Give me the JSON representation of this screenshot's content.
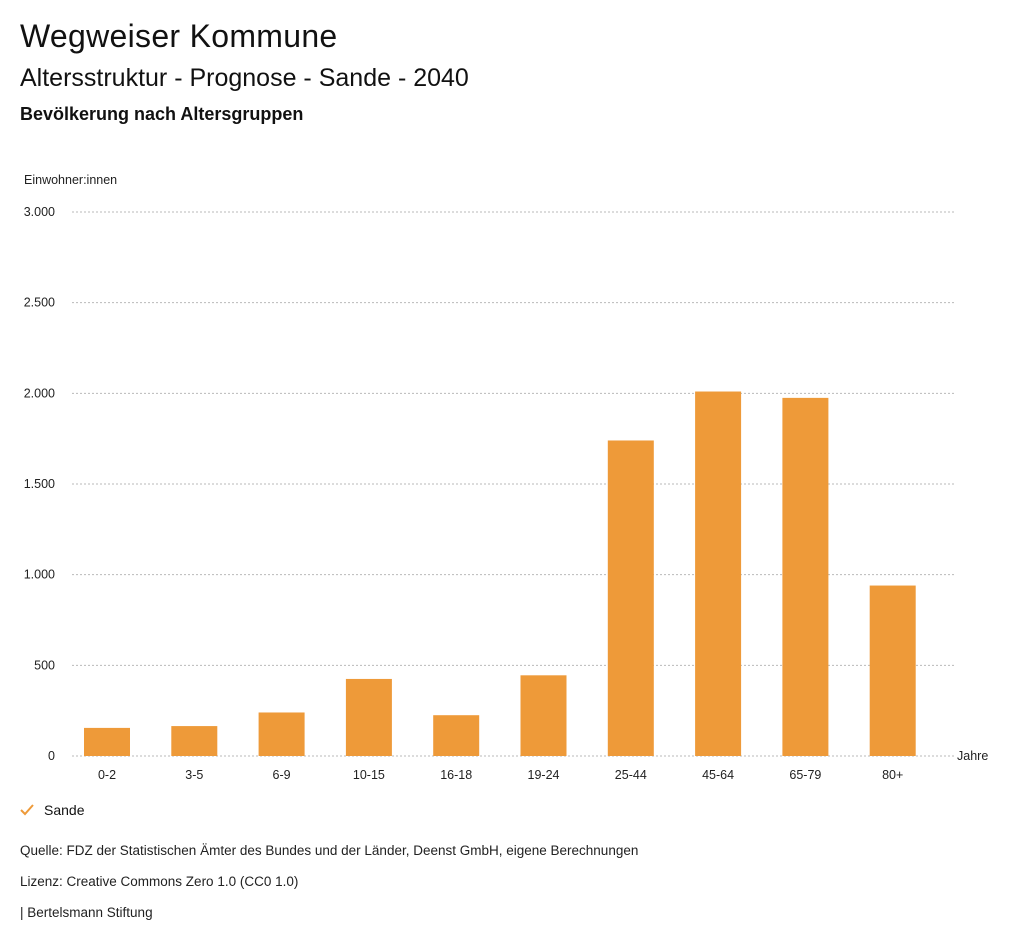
{
  "header": {
    "title": "Wegweiser Kommune",
    "subtitle": "Altersstruktur - Prognose - Sande - 2040",
    "subsubtitle": "Bevölkerung nach Altersgruppen"
  },
  "legend": {
    "label": "Sande",
    "color": "#EE9A39",
    "icon": "check-icon"
  },
  "footer": {
    "source": "Quelle: FDZ der Statistischen Ämter des Bundes und der Länder, Deenst GmbH, eigene Berechnungen",
    "license": "Lizenz: Creative Commons Zero 1.0 (CC0 1.0)",
    "publisher": "| Bertelsmann Stiftung"
  },
  "chart_data": {
    "type": "bar",
    "ylabel": "Einwohner:innen",
    "xlabel": "Jahre",
    "ylim": [
      0,
      3000
    ],
    "yticks": [
      0,
      500,
      1000,
      1500,
      2000,
      2500,
      3000
    ],
    "ytick_labels": [
      "0",
      "500",
      "1.000",
      "1.500",
      "2.000",
      "2.500",
      "3.000"
    ],
    "grid": true,
    "categories": [
      "0-2",
      "3-5",
      "6-9",
      "10-15",
      "16-18",
      "19-24",
      "25-44",
      "45-64",
      "65-79",
      "80+"
    ],
    "series": [
      {
        "name": "Sande",
        "color": "#EE9A39",
        "values": [
          155,
          165,
          240,
          425,
          225,
          445,
          1740,
          2010,
          1975,
          940
        ]
      }
    ]
  }
}
